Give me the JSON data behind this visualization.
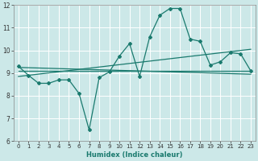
{
  "xlabel": "Humidex (Indice chaleur)",
  "ylabel": "",
  "bg_color": "#cce8e8",
  "grid_color": "#b0d8d8",
  "line_color": "#1a7a6e",
  "xlim": [
    -0.5,
    23.5
  ],
  "ylim": [
    6,
    12
  ],
  "xticks": [
    0,
    1,
    2,
    3,
    4,
    5,
    6,
    7,
    8,
    9,
    10,
    11,
    12,
    13,
    14,
    15,
    16,
    17,
    18,
    19,
    20,
    21,
    22,
    23
  ],
  "yticks": [
    6,
    7,
    8,
    9,
    10,
    11,
    12
  ],
  "series1_x": [
    0,
    1,
    2,
    3,
    4,
    5,
    6,
    7,
    8,
    9,
    10,
    11,
    12,
    13,
    14,
    15,
    16,
    17,
    18,
    19,
    20,
    21,
    22,
    23
  ],
  "series1_y": [
    9.3,
    8.9,
    8.55,
    8.55,
    8.7,
    8.7,
    8.1,
    6.5,
    8.8,
    9.05,
    9.75,
    10.3,
    8.85,
    10.6,
    11.55,
    11.85,
    11.85,
    10.5,
    10.4,
    9.35,
    9.5,
    9.9,
    9.85,
    9.1
  ],
  "series2_x": [
    0,
    23
  ],
  "series2_y": [
    9.1,
    9.1
  ],
  "series3_x": [
    0,
    23
  ],
  "series3_y": [
    8.85,
    10.05
  ],
  "series4_x": [
    0,
    23
  ],
  "series4_y": [
    9.25,
    8.95
  ]
}
